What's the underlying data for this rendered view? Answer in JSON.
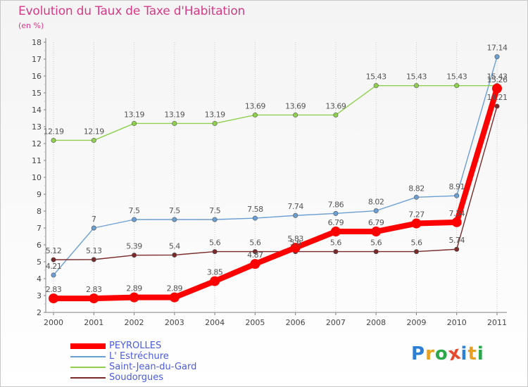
{
  "header": {
    "title": "Evolution du Taux de Taxe d'Habitation",
    "unit": "(en %)"
  },
  "logo": {
    "text": "Proxiti",
    "letter_colors": [
      "#2b7fd4",
      "#e8a020",
      "#2ba84a",
      "#e84a30",
      "#2b7fd4",
      "#e8a020",
      "#2ba84a"
    ]
  },
  "chart_data": {
    "type": "line",
    "title": "Evolution du Taux de Taxe d'Habitation",
    "ylabel": "(en %)",
    "xlabel": "",
    "x": [
      "2000",
      "2001",
      "2002",
      "2003",
      "2004",
      "2005",
      "2006",
      "2007",
      "2008",
      "2009",
      "2010",
      "2011"
    ],
    "ylim": [
      2,
      18
    ],
    "yticks": [
      2,
      3,
      4,
      5,
      6,
      7,
      8,
      9,
      10,
      11,
      12,
      13,
      14,
      15,
      16,
      17,
      18
    ],
    "grid": "vertical dotted",
    "legend_position": "bottom-left",
    "series": [
      {
        "name": "PEYROLLES",
        "color": "#ff0000",
        "emphasis": true,
        "values": [
          2.83,
          2.83,
          2.89,
          2.89,
          3.85,
          4.87,
          5.83,
          6.79,
          6.79,
          7.27,
          7.34,
          15.26
        ],
        "labels": [
          "2.83",
          "2.83",
          "2.89",
          "2.89",
          "3.85",
          "4.87",
          "5.83",
          "6.79",
          "6.79",
          "7.27",
          "7.34",
          "15.26"
        ]
      },
      {
        "name": "L' Estréchure",
        "color": "#6b9fd3",
        "values": [
          4.21,
          7,
          7.5,
          7.5,
          7.5,
          7.58,
          7.74,
          7.86,
          8.02,
          8.82,
          8.91,
          17.14
        ],
        "labels": [
          "4.21",
          "7",
          "7.5",
          "7.5",
          "7.5",
          "7.58",
          "7.74",
          "7.86",
          "8.02",
          "8.82",
          "8.91",
          "17.14"
        ]
      },
      {
        "name": "Saint-Jean-du-Gard",
        "color": "#8fd14f",
        "values": [
          12.19,
          12.19,
          13.19,
          13.19,
          13.19,
          13.69,
          13.69,
          13.69,
          15.43,
          15.43,
          15.43,
          15.43
        ],
        "labels": [
          "12.19",
          "12.19",
          "13.19",
          "13.19",
          "13.19",
          "13.69",
          "13.69",
          "13.69",
          "15.43",
          "15.43",
          "15.43",
          "15.43"
        ]
      },
      {
        "name": "Soudorgues",
        "color": "#7a2a2a",
        "values": [
          5.12,
          5.13,
          5.39,
          5.4,
          5.6,
          5.6,
          5.6,
          5.6,
          5.6,
          5.6,
          5.74,
          14.21
        ],
        "labels": [
          "5.12",
          "5.13",
          "5.39",
          "5.4",
          "5.6",
          "5.6",
          "5.6",
          "5.6",
          "5.6",
          "5.6",
          "5.74",
          "14.21"
        ]
      }
    ]
  }
}
